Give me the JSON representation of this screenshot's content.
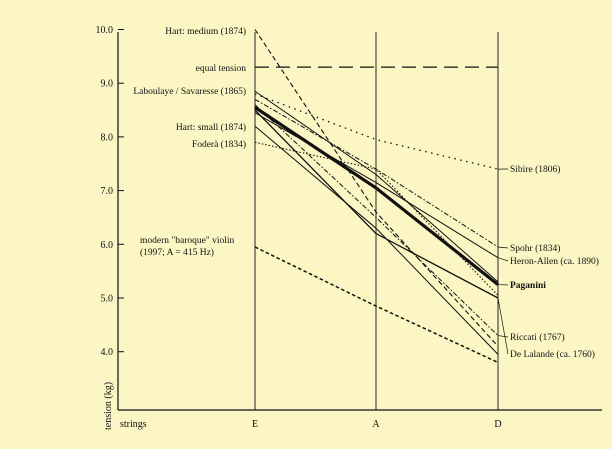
{
  "chart_data": {
    "type": "line",
    "title": "",
    "x_axis_title": "strings",
    "ylabel": "tension (kg)",
    "categories": [
      "E",
      "A",
      "D"
    ],
    "ylim": [
      3.0,
      10.0
    ],
    "yticks": [
      "4.0",
      "5.0",
      "6.0",
      "7.0",
      "8.0",
      "9.0",
      "10.0"
    ],
    "grid": "vertical lines at each string",
    "series": [
      {
        "name": "Hart: medium (1874)",
        "label_side": "left",
        "style": "dash-long",
        "values": [
          10.0,
          6.6,
          4.1
        ]
      },
      {
        "name": "equal tension",
        "label_side": "left",
        "style": "dash-wide",
        "values": [
          9.3,
          9.3,
          9.3
        ]
      },
      {
        "name": "Laboulaye / Savaresse (1865)",
        "label_side": "left",
        "style": "solid-thin",
        "values": [
          8.85,
          7.3,
          5.3
        ]
      },
      {
        "name": "Hart: small (1874)",
        "label_side": "left",
        "style": "solid-thin",
        "values": [
          8.2,
          6.3,
          3.95
        ]
      },
      {
        "name": "Foderà (1834)",
        "label_side": "left",
        "style": "dotted",
        "values": [
          7.9,
          7.4,
          5.05
        ]
      },
      {
        "name": "modern \"baroque\" violin",
        "name_line2": "(1997; A = 415 Hz)",
        "label_side": "left",
        "style": "dash-short",
        "values": [
          5.95,
          4.85,
          3.8
        ]
      },
      {
        "name": "Sibire (1806)",
        "label_side": "right",
        "style": "dotted-sparse",
        "values": [
          8.8,
          7.95,
          7.4
        ]
      },
      {
        "name": "Spohr (1834)",
        "label_side": "right",
        "style": "dash-dot",
        "values": [
          8.7,
          7.4,
          5.95
        ]
      },
      {
        "name": "Heron-Allen (ca. 1890)",
        "label_side": "right",
        "style": "solid-thin",
        "values": [
          8.45,
          7.15,
          5.75
        ]
      },
      {
        "name": "Paganini",
        "label_side": "right",
        "style": "solid-bold",
        "values": [
          8.55,
          7.05,
          5.25
        ]
      },
      {
        "name": "Riccati (1767)",
        "label_side": "right",
        "style": "dash-dot",
        "values": [
          8.6,
          6.5,
          4.3
        ]
      },
      {
        "name": "De Lalande (ca. 1760)",
        "label_side": "right",
        "style": "solid",
        "values": [
          8.5,
          6.2,
          5.0
        ]
      }
    ]
  }
}
